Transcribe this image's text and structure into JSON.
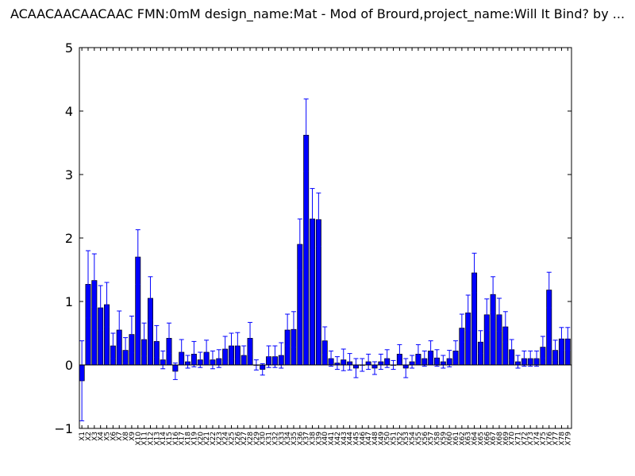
{
  "chart_data": {
    "type": "bar",
    "title": "ACAACAACAACAAC  FMN:0mM  design_name:Mat - Mod of Brourd,project_name:Will It Bind? by ...",
    "xlabel": "",
    "ylabel": "",
    "ylim": [
      -1,
      5
    ],
    "yticks": [
      "−1",
      "0",
      "1",
      "2",
      "3",
      "4",
      "5"
    ],
    "grid": false,
    "bar_color": "#0000ff",
    "error_color": "#0000ff",
    "categories": [
      "X1",
      "X2",
      "X3",
      "X4",
      "X5",
      "X6",
      "X7",
      "X8",
      "X9",
      "X10",
      "X11",
      "X12",
      "X13",
      "X14",
      "X15",
      "X16",
      "X17",
      "X18",
      "X19",
      "X20",
      "X21",
      "X22",
      "X23",
      "X24",
      "X25",
      "X26",
      "X27",
      "X28",
      "X29",
      "X30",
      "X31",
      "X32",
      "X33",
      "X34",
      "X35",
      "X36",
      "X37",
      "X38",
      "X39",
      "X40",
      "X41",
      "X42",
      "X43",
      "X44",
      "X45",
      "X46",
      "X47",
      "X48",
      "X49",
      "X50",
      "X51",
      "X52",
      "X53",
      "X54",
      "X55",
      "X56",
      "X57",
      "X58",
      "X59",
      "X60",
      "X61",
      "X62",
      "X63",
      "X64",
      "X65",
      "X66",
      "X67",
      "X68",
      "X69",
      "X70",
      "X71",
      "X72",
      "X73",
      "X74",
      "X75",
      "X76",
      "X77",
      "X78",
      "X79"
    ],
    "values": [
      -0.25,
      1.27,
      1.33,
      0.9,
      0.95,
      0.3,
      0.55,
      0.23,
      0.48,
      1.7,
      0.4,
      1.05,
      0.37,
      0.08,
      0.42,
      -0.1,
      0.2,
      0.05,
      0.17,
      0.08,
      0.2,
      0.08,
      0.1,
      0.25,
      0.3,
      0.3,
      0.15,
      0.42,
      0.0,
      -0.07,
      0.13,
      0.13,
      0.15,
      0.55,
      0.56,
      1.9,
      3.62,
      2.3,
      2.29,
      0.38,
      0.1,
      0.03,
      0.08,
      0.05,
      -0.05,
      0.0,
      0.05,
      -0.05,
      0.05,
      0.1,
      0.0,
      0.17,
      -0.05,
      0.05,
      0.17,
      0.1,
      0.22,
      0.11,
      0.05,
      0.1,
      0.22,
      0.58,
      0.82,
      1.45,
      0.36,
      0.79,
      1.11,
      0.79,
      0.6,
      0.24,
      0.05,
      0.1,
      0.1,
      0.1,
      0.28,
      1.18,
      0.23,
      0.41,
      0.41
    ],
    "errors": [
      0.63,
      0.53,
      0.42,
      0.35,
      0.35,
      0.2,
      0.3,
      0.2,
      0.29,
      0.43,
      0.26,
      0.34,
      0.25,
      0.14,
      0.24,
      0.13,
      0.2,
      0.1,
      0.2,
      0.12,
      0.19,
      0.14,
      0.14,
      0.2,
      0.2,
      0.21,
      0.15,
      0.25,
      0.08,
      0.09,
      0.17,
      0.17,
      0.2,
      0.25,
      0.28,
      0.4,
      0.57,
      0.48,
      0.42,
      0.22,
      0.12,
      0.1,
      0.17,
      0.13,
      0.15,
      0.1,
      0.12,
      0.1,
      0.12,
      0.14,
      0.07,
      0.15,
      0.15,
      0.1,
      0.15,
      0.12,
      0.16,
      0.13,
      0.1,
      0.13,
      0.16,
      0.22,
      0.28,
      0.31,
      0.18,
      0.25,
      0.28,
      0.26,
      0.24,
      0.16,
      0.1,
      0.12,
      0.12,
      0.12,
      0.17,
      0.28,
      0.16,
      0.18,
      0.18
    ]
  }
}
